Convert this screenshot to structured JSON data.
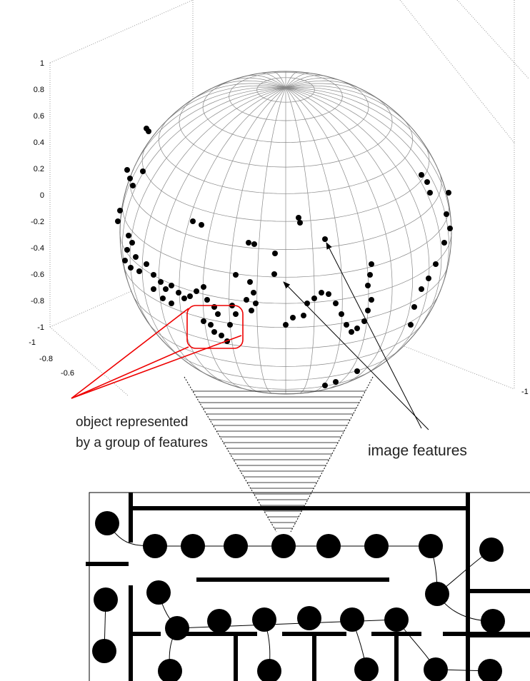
{
  "axes": {
    "z_ticks": [
      "1",
      "0.8",
      "0.6",
      "0.4",
      "0.2",
      "0",
      "-0.2",
      "-0.4",
      "-0.6",
      "-0.8",
      "-1"
    ],
    "floor_ticks": [
      "-1",
      "-0.8",
      "-0.6"
    ],
    "right_tick": "-1"
  },
  "annotations": {
    "object_label": [
      "object represented",
      "by a group of features"
    ],
    "features_label": "image features"
  }
}
